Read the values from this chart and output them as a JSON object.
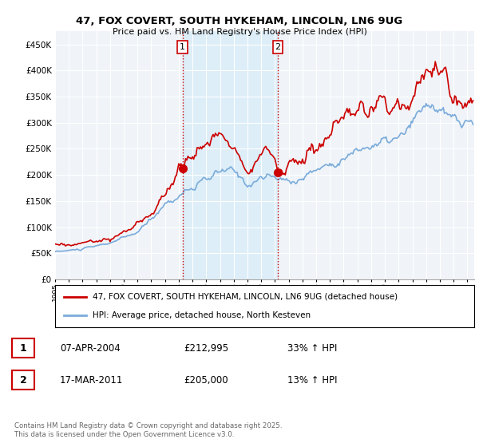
{
  "title": "47, FOX COVERT, SOUTH HYKEHAM, LINCOLN, LN6 9UG",
  "subtitle": "Price paid vs. HM Land Registry's House Price Index (HPI)",
  "background_color": "#ffffff",
  "plot_bg_color": "#f0f4f8",
  "grid_color": "#ffffff",
  "sale_color": "#cc0000",
  "hpi_color": "#7aabda",
  "vline_color": "#cc0000",
  "vshade_color": "#ddeef8",
  "ytick_labels": [
    "£0",
    "£50K",
    "£100K",
    "£150K",
    "£200K",
    "£250K",
    "£300K",
    "£350K",
    "£400K",
    "£450K"
  ],
  "yticks": [
    0,
    50000,
    100000,
    150000,
    200000,
    250000,
    300000,
    350000,
    400000,
    450000
  ],
  "ylim": [
    0,
    475000
  ],
  "annotation1": {
    "label": "1",
    "date": "07-APR-2004",
    "price": "£212,995",
    "hpi_pct": "33% ↑ HPI"
  },
  "annotation2": {
    "label": "2",
    "date": "17-MAR-2011",
    "price": "£205,000",
    "hpi_pct": "13% ↑ HPI"
  },
  "legend_line1": "47, FOX COVERT, SOUTH HYKEHAM, LINCOLN, LN6 9UG (detached house)",
  "legend_line2": "HPI: Average price, detached house, North Kesteven",
  "footer": "Contains HM Land Registry data © Crown copyright and database right 2025.\nThis data is licensed under the Open Government Licence v3.0.",
  "marker1_year": 2004.27,
  "marker1_val": 212995,
  "marker2_year": 2011.21,
  "marker2_val": 205000,
  "vline1_x": 2004.27,
  "vline2_x": 2011.21,
  "xlim_min": 1995.0,
  "xlim_max": 2025.5
}
